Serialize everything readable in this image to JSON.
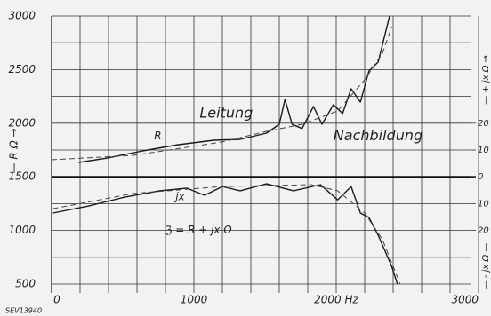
{
  "chart_data": {
    "type": "line",
    "ylabel": "— R Ω →",
    "y2label_top": "— + jx Ω →",
    "y2label_bottom": "— - jx Ω —",
    "xlim": [
      0,
      3000
    ],
    "xticks": [
      0,
      1000,
      {
        "value": 2000,
        "label": "2000 Hz"
      },
      3000
    ],
    "ylim": [
      500,
      3000
    ],
    "yticks": [
      500,
      1000,
      1500,
      2000,
      2500,
      3000
    ],
    "y2lim": [
      -40,
      60
    ],
    "y2ticks": [
      20,
      10,
      0,
      {
        "value": -10,
        "label": "10"
      },
      {
        "value": -20,
        "label": "20"
      }
    ],
    "grid": true,
    "series": [
      {
        "name": "Leitung",
        "color": "#1a1a1a",
        "dash": false,
        "x": [
          190,
          390,
          640,
          890,
          1140,
          1325,
          1510,
          1600,
          1640,
          1690,
          1760,
          1840,
          1900,
          1980,
          2045,
          2105,
          2170,
          2230,
          2295,
          2375
        ],
        "values": [
          1634,
          1675,
          1742,
          1800,
          1841,
          1849,
          1907,
          1990,
          2222,
          1990,
          1950,
          2156,
          1990,
          2172,
          2090,
          2321,
          2197,
          2487,
          2570,
          3000
        ]
      },
      {
        "name": "Nachbildung",
        "color": "#444444",
        "dash": true,
        "x": [
          0,
          575,
          1200,
          1510,
          1760,
          2010,
          2200,
          2325,
          2390
        ],
        "values": [
          1659,
          1700,
          1825,
          1924,
          1990,
          2114,
          2404,
          2652,
          2900
        ]
      },
      {
        "color": "#1a1a1a",
        "dash": false,
        "axis": "y2",
        "x": [
          10,
          260,
          510,
          760,
          950,
          1075,
          1200,
          1325,
          1510,
          1700,
          1890,
          2010,
          2105,
          2170,
          2230,
          2295,
          2390,
          2430
        ],
        "values": [
          -13.5,
          -10.9,
          -7.6,
          -5.2,
          -4.2,
          -6.9,
          -3.6,
          -5.2,
          -2.6,
          -5.2,
          -2.9,
          -8.6,
          -3.6,
          -13.5,
          -15.2,
          -21.8,
          -33.4,
          -40
        ]
      },
      {
        "color": "#444444",
        "dash": true,
        "axis": "y2",
        "x": [
          10,
          575,
          1200,
          1825,
          2010,
          2200,
          2325,
          2450
        ],
        "values": [
          -11.9,
          -6.2,
          -3.6,
          -2.9,
          -5.2,
          -13.5,
          -23.4,
          -40
        ]
      }
    ],
    "annotations": [
      {
        "text": "Leitung",
        "x": 1040,
        "y": 2090
      },
      {
        "text": "Nachbildung",
        "x": 1980,
        "y": 1880
      },
      {
        "text": "R",
        "x": 720,
        "y": 1880
      },
      {
        "text": "jx",
        "x": 870,
        "y": 1310
      },
      {
        "text": "ℨ = R + jx Ω",
        "x": 800,
        "y": 1000
      }
    ],
    "footnote": "SEV13940"
  }
}
